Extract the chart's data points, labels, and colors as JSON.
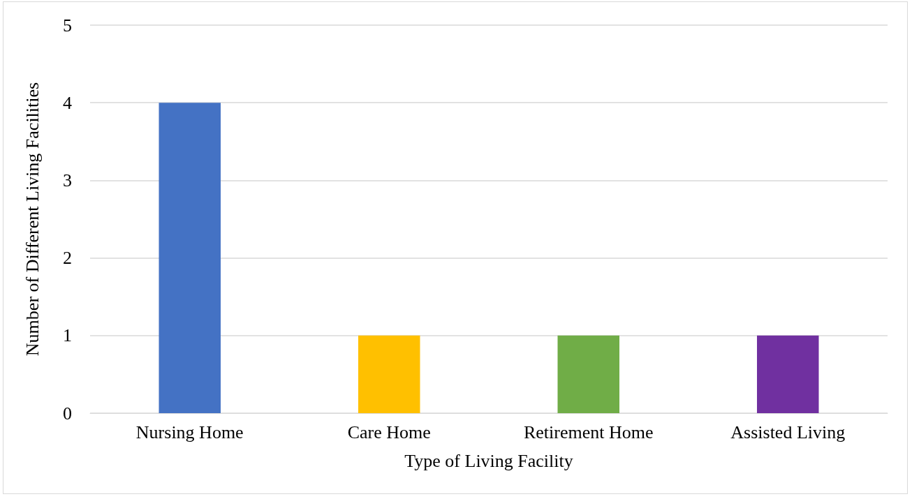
{
  "chart_data": {
    "type": "bar",
    "xlabel": "Type of Living Facility",
    "ylabel": "Number of Different Living Facilities",
    "categories": [
      "Nursing Home",
      "Care Home",
      "Retirement Home",
      "Assisted Living"
    ],
    "values": [
      4,
      1,
      1,
      1
    ],
    "colors": [
      "#4472c4",
      "#ffc000",
      "#70ad47",
      "#7030a0"
    ],
    "ylim": [
      0,
      5
    ],
    "yticks": [
      0,
      1,
      2,
      3,
      4,
      5
    ],
    "grid": "y"
  }
}
